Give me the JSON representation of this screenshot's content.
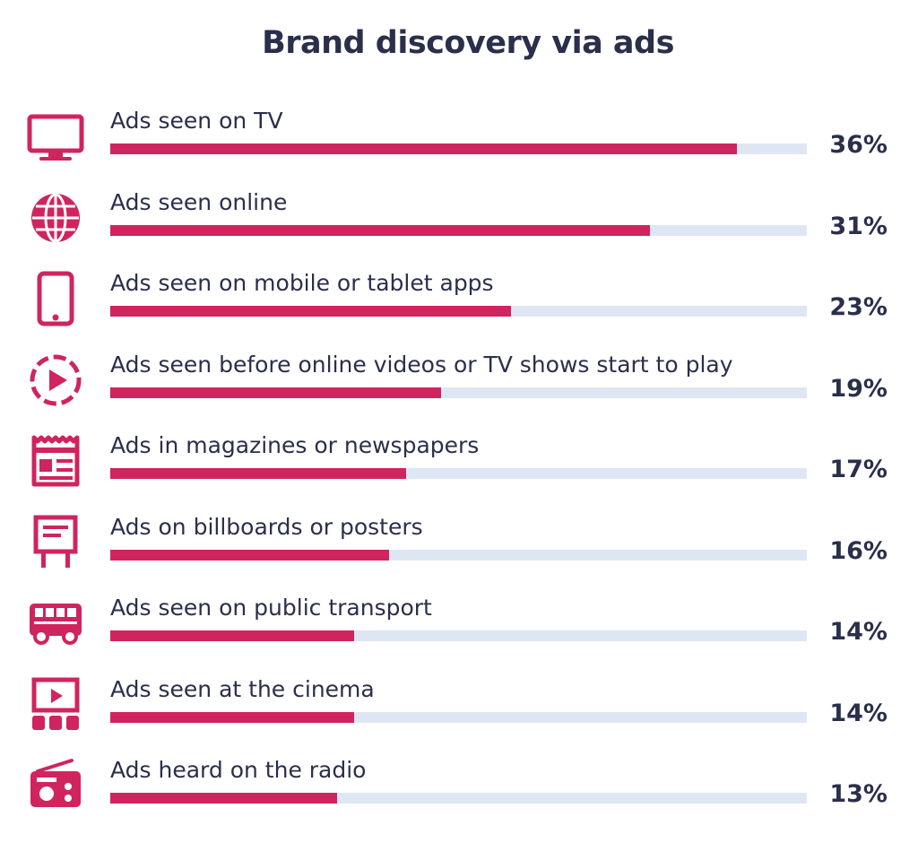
{
  "chart_data": {
    "type": "bar",
    "title": "Brand discovery via ads",
    "orientation": "horizontal",
    "xlim": [
      0,
      40
    ],
    "categories": [
      "Ads seen on TV",
      "Ads seen online",
      "Ads seen on mobile or tablet apps",
      "Ads seen before online videos or TV shows start to play",
      "Ads in magazines or newspapers",
      "Ads on billboards or posters",
      "Ads seen on public transport",
      "Ads seen at the cinema",
      "Ads heard on the radio"
    ],
    "values": [
      36,
      31,
      23,
      19,
      17,
      16,
      14,
      14,
      13
    ],
    "value_labels": [
      "36%",
      "31%",
      "23%",
      "19%",
      "17%",
      "16%",
      "14%",
      "14%",
      "13%"
    ],
    "icons": [
      "tv-icon",
      "globe-icon",
      "smartphone-icon",
      "video-play-icon",
      "newspaper-icon",
      "billboard-icon",
      "bus-icon",
      "cinema-icon",
      "radio-icon"
    ],
    "colors": {
      "bar": "#d0245e",
      "track": "#dfe6f3",
      "text": "#2a2f4b"
    },
    "grid": false,
    "legend": "none"
  }
}
